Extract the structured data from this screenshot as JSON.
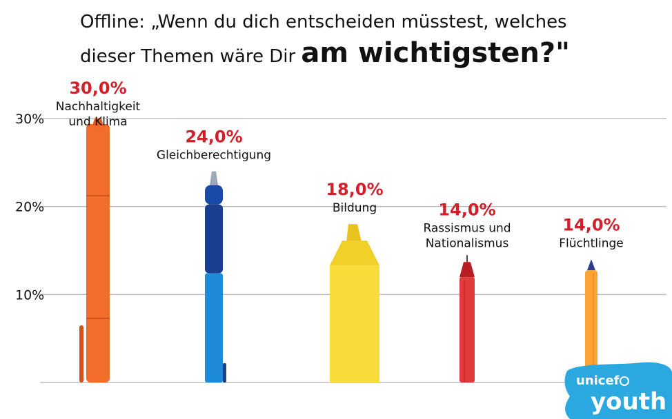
{
  "title": {
    "line1": "Offline: „Wenn du dich entscheiden müsstest, welches",
    "line2_prefix": "dieser Themen wäre Dir ",
    "line2_emph": "am wichtigsten?\""
  },
  "logo": {
    "top": "unicef",
    "bottom": "youth",
    "icon": "unicef-globe-icon"
  },
  "colors": {
    "label_red": "#d0202a",
    "grid": "#bdbdbd",
    "logo_bg": "#2ba8e0"
  },
  "chart_data": {
    "type": "bar",
    "bar_style": "pens",
    "yticks": [
      "10%",
      "20%",
      "30%"
    ],
    "ytick_values": [
      10,
      20,
      30
    ],
    "ylim": [
      0,
      30
    ],
    "grid": true,
    "categories": [
      [
        "Nachhaltigkeit",
        "und Klima"
      ],
      [
        "Gleichberechtigung"
      ],
      [
        "Bildung"
      ],
      [
        "Rassismus und",
        "Nationalismus"
      ],
      [
        "Flüchtlinge"
      ]
    ],
    "values": [
      30.0,
      24.0,
      18.0,
      14.0,
      14.0
    ],
    "value_labels": [
      "30,0%",
      "24,0%",
      "18,0%",
      "14,0%",
      "14,0%"
    ],
    "pens": [
      {
        "kind": "marker",
        "body": "#f26c2a",
        "dark": "#d4531a",
        "tip": "#e85a1e"
      },
      {
        "kind": "gel-pen",
        "body": "#1f8ad8",
        "dark": "#1a3f8f",
        "tip": "#1a4aa8"
      },
      {
        "kind": "highlighter",
        "body": "#f7dc3a",
        "dark": "#e8c31e",
        "tip": "#f2d02a"
      },
      {
        "kind": "fineliner",
        "body": "#e23a3a",
        "dark": "#b81f24",
        "tip": "#c22a2a"
      },
      {
        "kind": "ballpoint",
        "body": "#ffa335",
        "dark": "#e8861c",
        "tip": "#2a3c8f"
      }
    ]
  }
}
